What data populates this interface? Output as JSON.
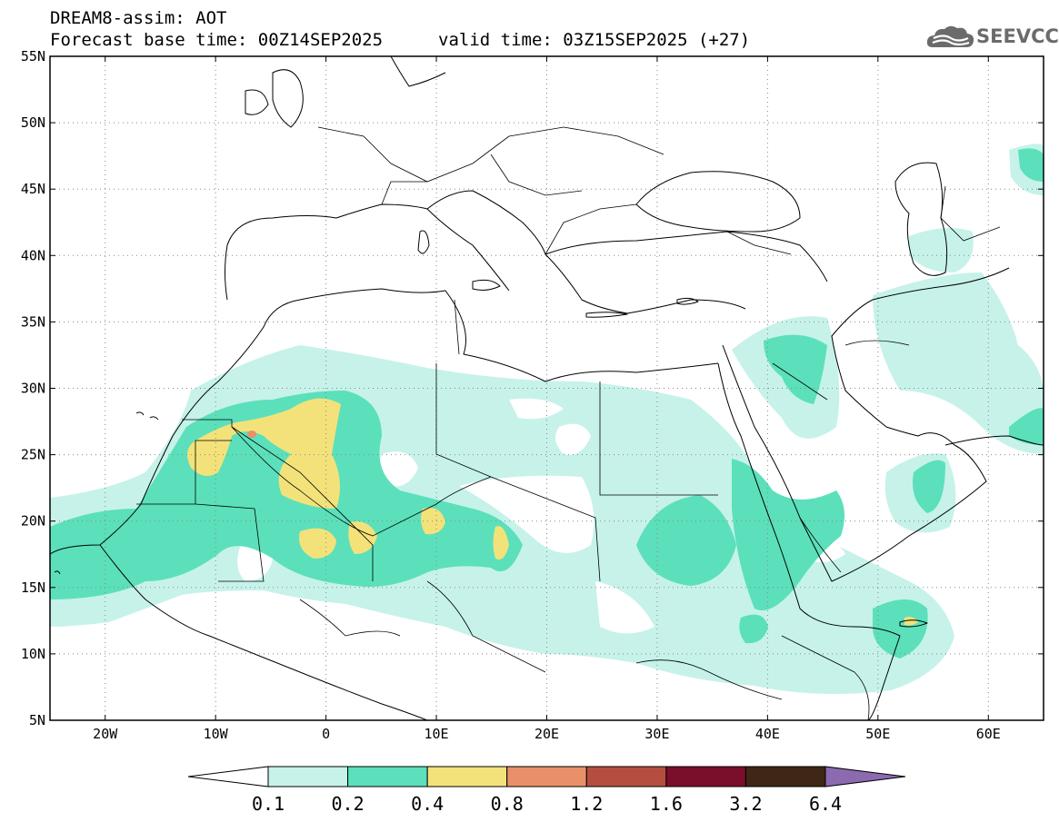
{
  "header": {
    "title": "DREAM8-assim: AOT",
    "base_time": "Forecast base time: 00Z14SEP2025",
    "valid_time": "valid time: 03Z15SEP2025 (+27)"
  },
  "logo": {
    "text": "SEEVCCC",
    "icon": "cloud-logo-icon"
  },
  "map": {
    "lon_range": [
      -25,
      65
    ],
    "lat_range": [
      5,
      55
    ],
    "lat_ticks": [
      "55N",
      "50N",
      "45N",
      "40N",
      "35N",
      "30N",
      "25N",
      "20N",
      "15N",
      "10N",
      "5N"
    ],
    "lon_ticks": [
      "20W",
      "10W",
      "0",
      "10E",
      "20E",
      "30E",
      "40E",
      "50E",
      "60E"
    ],
    "gridlines": "dotted"
  },
  "colorbar": {
    "labels": [
      "0.1",
      "0.2",
      "0.4",
      "0.8",
      "1.2",
      "1.6",
      "3.2",
      "6.4"
    ],
    "colors": [
      "#c6f2ea",
      "#5be0bb",
      "#f3e27a",
      "#e9906a",
      "#b54e40",
      "#7a0f2b",
      "#3e2716",
      "#8c6ab0"
    ]
  }
}
